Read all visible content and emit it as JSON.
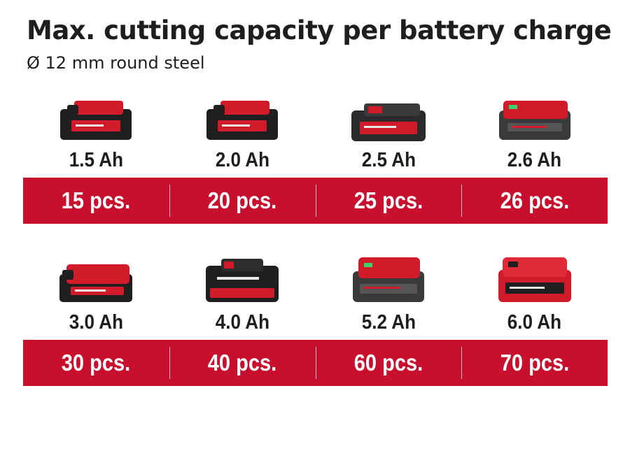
{
  "title": "Max. cutting capacity per battery charge",
  "subtitle": "Ø 12 mm round steel",
  "colors": {
    "accent": "#c8102e",
    "battery_body": "#1f1f1f",
    "battery_red": "#d11a2a",
    "text": "#1e1e1e"
  },
  "rows": [
    {
      "items": [
        {
          "capacity": "1.5 Ah",
          "cuts": "15 pcs.",
          "icon": "battery-pack-icon"
        },
        {
          "capacity": "2.0 Ah",
          "cuts": "20 pcs.",
          "icon": "battery-pack-icon"
        },
        {
          "capacity": "2.5 Ah",
          "cuts": "25 pcs.",
          "icon": "battery-pack-icon"
        },
        {
          "capacity": "2.6 Ah",
          "cuts": "26 pcs.",
          "icon": "battery-pack-icon"
        }
      ]
    },
    {
      "items": [
        {
          "capacity": "3.0 Ah",
          "cuts": "30 pcs.",
          "icon": "battery-pack-icon"
        },
        {
          "capacity": "4.0 Ah",
          "cuts": "40 pcs.",
          "icon": "battery-pack-icon"
        },
        {
          "capacity": "5.2 Ah",
          "cuts": "60 pcs.",
          "icon": "battery-pack-icon"
        },
        {
          "capacity": "6.0 Ah",
          "cuts": "70 pcs.",
          "icon": "battery-pack-icon"
        }
      ]
    }
  ]
}
